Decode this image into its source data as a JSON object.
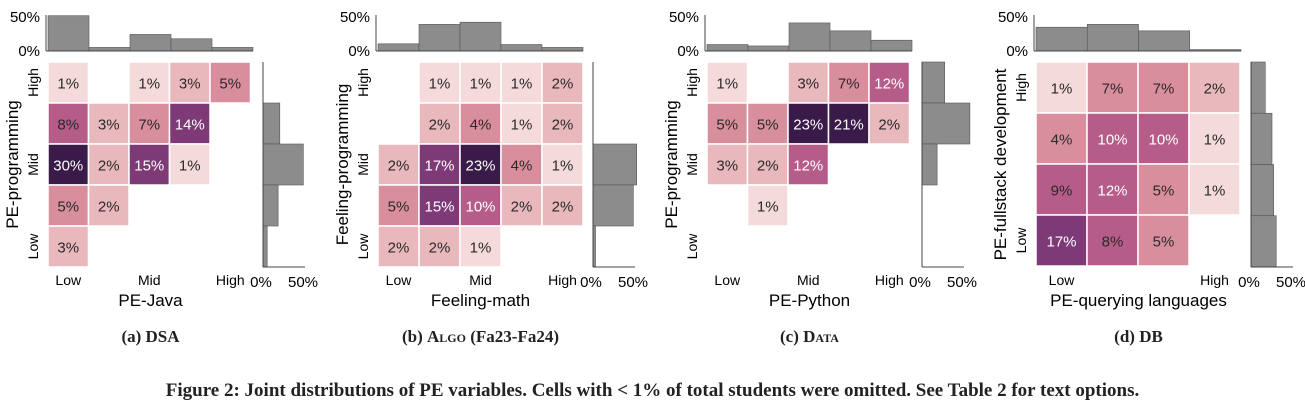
{
  "figure_caption": "Figure 2: Joint distributions of PE variables. Cells with < 1% of total students were omitted. See Table 2 for text options.",
  "heat_colors": [
    "#f4dada",
    "#e8b8bc",
    "#d98e9e",
    "#b55c88",
    "#7e3a77",
    "#3a1a48"
  ],
  "bar_color": "#8c8c8c",
  "chart_data": [
    {
      "type": "heatmap",
      "caption_prefix": "(a) ",
      "caption_name": "DSA",
      "caption_smallcaps": false,
      "caption_suffix": "",
      "xlabel": "PE-Java",
      "ylabel": "PE-programming",
      "x_ticks": [
        "Low",
        "Mid",
        "High"
      ],
      "x_tick_cols": [
        0,
        2,
        4
      ],
      "y_ticks": [
        "High",
        "Mid",
        "Low"
      ],
      "y_tick_rows": [
        0,
        2,
        4
      ],
      "top_axis": [
        "50%",
        "0%"
      ],
      "right_axis": [
        "0%",
        "50%"
      ],
      "marginal_x": [
        49,
        5,
        23,
        17,
        5
      ],
      "marginal_y": [
        0,
        20,
        48,
        18,
        5
      ],
      "cells": [
        [
          1,
          0,
          1,
          3,
          5
        ],
        [
          8,
          3,
          7,
          14,
          0
        ],
        [
          30,
          2,
          15,
          1,
          0
        ],
        [
          5,
          2,
          0,
          0,
          0
        ],
        [
          3,
          0,
          0,
          0,
          0
        ]
      ]
    },
    {
      "type": "heatmap",
      "caption_prefix": "(b) ",
      "caption_name": "Algo",
      "caption_smallcaps": true,
      "caption_suffix": " (Fa23-Fa24)",
      "xlabel": "Feeling-math",
      "ylabel": "Feeling-programming",
      "x_ticks": [
        "Low",
        "Mid",
        "High"
      ],
      "x_tick_cols": [
        0,
        2,
        4
      ],
      "y_ticks": [
        "High",
        "Mid",
        "Low"
      ],
      "y_tick_rows": [
        0,
        2,
        4
      ],
      "top_axis": [
        "50%",
        "0%"
      ],
      "right_axis": [
        "0%",
        "50%"
      ],
      "marginal_x": [
        10,
        37,
        40,
        9,
        5
      ],
      "marginal_y": [
        0,
        0,
        52,
        48,
        3
      ],
      "cells": [
        [
          0,
          1,
          1,
          1,
          2
        ],
        [
          0,
          2,
          4,
          1,
          2
        ],
        [
          2,
          17,
          23,
          4,
          1
        ],
        [
          5,
          15,
          10,
          2,
          2
        ],
        [
          2,
          2,
          1,
          0,
          0
        ]
      ]
    },
    {
      "type": "heatmap",
      "caption_prefix": "(c) ",
      "caption_name": "Data",
      "caption_smallcaps": true,
      "caption_suffix": "",
      "xlabel": "PE-Python",
      "ylabel": "PE-programming",
      "x_ticks": [
        "Low",
        "Mid",
        "High"
      ],
      "x_tick_cols": [
        0,
        2,
        4
      ],
      "y_ticks": [
        "High",
        "Mid",
        "Low"
      ],
      "y_tick_rows": [
        0,
        2,
        4
      ],
      "top_axis": [
        "50%",
        "0%"
      ],
      "right_axis": [
        "0%",
        "50%"
      ],
      "marginal_x": [
        9,
        7,
        39,
        28,
        15
      ],
      "marginal_y": [
        27,
        57,
        18,
        0,
        0
      ],
      "cells": [
        [
          1,
          0,
          3,
          7,
          12
        ],
        [
          5,
          5,
          23,
          21,
          2
        ],
        [
          3,
          2,
          12,
          0,
          0
        ],
        [
          0,
          1,
          0,
          0,
          0
        ],
        [
          0,
          0,
          0,
          0,
          0
        ]
      ]
    },
    {
      "type": "heatmap",
      "caption_prefix": "(d) ",
      "caption_name": "DB",
      "caption_smallcaps": false,
      "caption_suffix": "",
      "xlabel": "PE-querying languages",
      "ylabel": "PE-fullstack development",
      "x_ticks": [
        "Low",
        "High"
      ],
      "x_tick_cols": [
        0,
        3
      ],
      "y_ticks": [
        "High",
        "Low"
      ],
      "y_tick_rows": [
        0,
        3
      ],
      "top_axis": [
        "50%",
        "0%"
      ],
      "right_axis": [
        "0%",
        "50%"
      ],
      "marginal_x": [
        33,
        37,
        28,
        2
      ],
      "marginal_y": [
        17,
        25,
        27,
        30
      ],
      "cells": [
        [
          1,
          7,
          7,
          2
        ],
        [
          4,
          10,
          10,
          1
        ],
        [
          9,
          12,
          5,
          1
        ],
        [
          17,
          8,
          5,
          0
        ]
      ]
    }
  ]
}
